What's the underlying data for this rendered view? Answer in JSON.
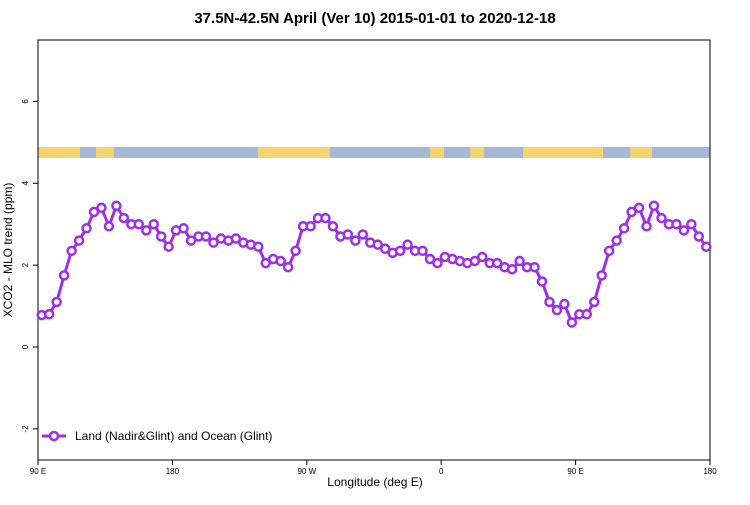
{
  "chart_data": {
    "type": "line",
    "title": "37.5N-42.5N April (Ver 10)   2015-01-01 to 2020-12-18",
    "x_label": "Longitude (deg E)",
    "y_label": "XCO2 - MLO trend (ppm)",
    "x": [
      92.5,
      97.5,
      102.5,
      107.5,
      112.5,
      117.5,
      122.5,
      127.5,
      132.5,
      137.5,
      142.5,
      147.5,
      152.5,
      157.5,
      162.5,
      167.5,
      172.5,
      177.5,
      182.5,
      187.5,
      192.5,
      197.5,
      202.5,
      207.5,
      212.5,
      217.5,
      222.5,
      227.5,
      232.5,
      237.5,
      242.5,
      247.5,
      252.5,
      257.5,
      262.5,
      267.5,
      272.5,
      277.5,
      282.5,
      287.5,
      292.5,
      297.5,
      302.5,
      307.5,
      312.5,
      317.5,
      322.5,
      327.5,
      332.5,
      337.5,
      342.5,
      347.5,
      352.5,
      357.5,
      362.5,
      367.5,
      372.5,
      377.5,
      382.5,
      387.5,
      392.5,
      397.5,
      402.5,
      407.5,
      412.5,
      417.5,
      422.5,
      427.5,
      432.5,
      437.5,
      442.5,
      447.5,
      452.5,
      457.5,
      462.5,
      467.5,
      472.5,
      477.5,
      482.5,
      487.5,
      492.5,
      497.5,
      502.5,
      507.5,
      512.5,
      517.5,
      522.5,
      527.5,
      532.5,
      537.5
    ],
    "series": [
      {
        "name": "Land (Nadir&Glint) and Ocean (Glint)",
        "color": "#9b30e8",
        "values": [
          0.78,
          0.8,
          1.1,
          1.75,
          2.35,
          2.6,
          2.9,
          3.3,
          3.4,
          2.95,
          3.45,
          3.15,
          3.0,
          3.0,
          2.85,
          3.0,
          2.7,
          2.45,
          2.85,
          2.9,
          2.6,
          2.7,
          2.7,
          2.55,
          2.65,
          2.6,
          2.65,
          2.55,
          2.5,
          2.45,
          2.05,
          2.15,
          2.1,
          1.95,
          2.35,
          2.95,
          2.95,
          3.15,
          3.15,
          2.95,
          2.7,
          2.75,
          2.6,
          2.75,
          2.55,
          2.5,
          2.4,
          2.3,
          2.35,
          2.5,
          2.35,
          2.35,
          2.15,
          2.05,
          2.2,
          2.15,
          2.1,
          2.05,
          2.1,
          2.2,
          2.05,
          2.05,
          1.95,
          1.9,
          2.1,
          1.95,
          1.95,
          1.6,
          1.1,
          0.9,
          1.05,
          0.6,
          0.8,
          0.8,
          1.1,
          1.75,
          2.35,
          2.6,
          2.9,
          3.3,
          3.4,
          2.95,
          3.45,
          3.15,
          3.0,
          3.0,
          2.85,
          3.0,
          2.7,
          2.45
        ]
      }
    ],
    "xlim": [
      90,
      540
    ],
    "xticks": [
      {
        "value": 90,
        "label": "90 E"
      },
      180,
      {
        "value": 270,
        "label": "90 W"
      },
      {
        "value": 360,
        "label": "0"
      },
      {
        "value": 450,
        "label": "90 E"
      },
      {
        "value": 540,
        "label": "180"
      }
    ],
    "ylim": [
      -2.76,
      7.5
    ],
    "yticks": [
      -2,
      0,
      2,
      4,
      6
    ],
    "legend": "bottom-left"
  }
}
